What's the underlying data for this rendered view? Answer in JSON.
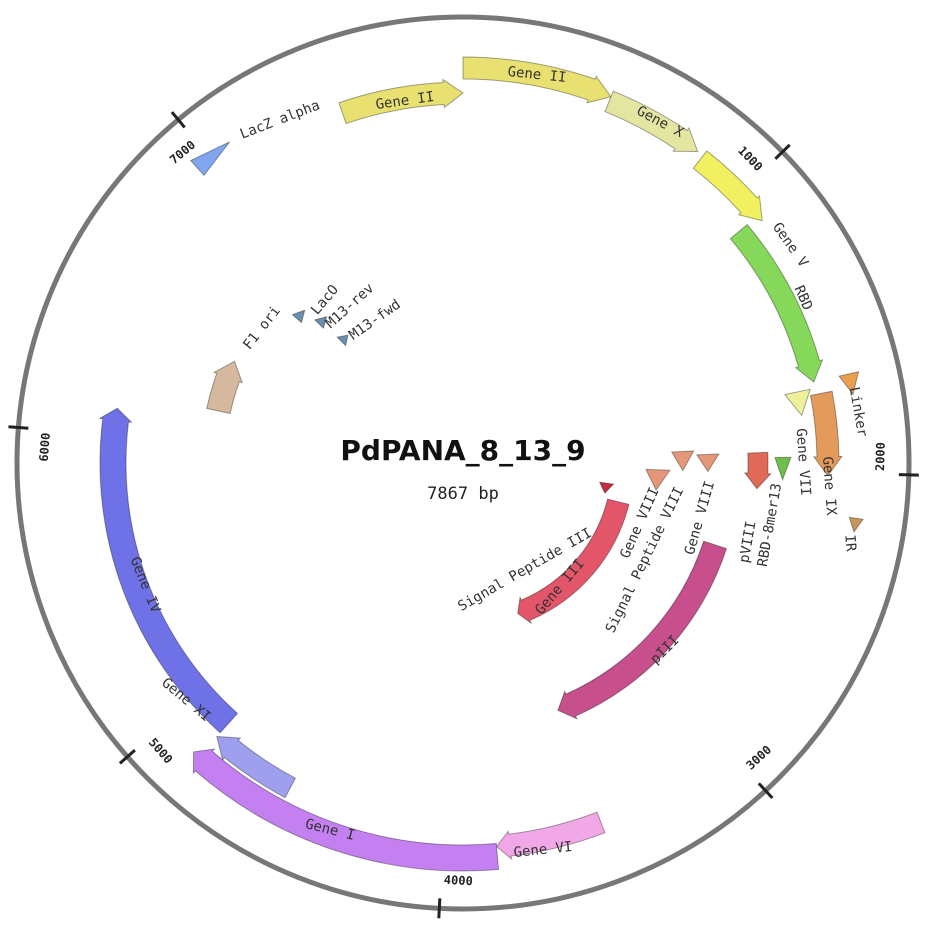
{
  "map": {
    "title": "PdPANA_8_13_9",
    "length": {
      "value": 7867,
      "label": "7867 bp"
    },
    "ticks": [
      1000,
      2000,
      3000,
      4000,
      5000,
      6000,
      7000
    ],
    "features": [
      {
        "label": "LacZ alpha"
      },
      {
        "label": "Gene II"
      },
      {
        "label": "Gene II"
      },
      {
        "label": "Gene X"
      },
      {
        "label": "Gene V"
      },
      {
        "label": "RBD"
      },
      {
        "label": "Linker"
      },
      {
        "label": "Gene VII"
      },
      {
        "label": "Gene IX"
      },
      {
        "label": "IR"
      },
      {
        "label": "RBD-8mer13"
      },
      {
        "label": "pVIII"
      },
      {
        "label": "Gene VIII"
      },
      {
        "label": "Signal Peptide VIII"
      },
      {
        "label": "Gene VIII"
      },
      {
        "label": "Gene III"
      },
      {
        "label": "Signal Peptide III"
      },
      {
        "label": "pIII"
      },
      {
        "label": "Gene IV"
      },
      {
        "label": "Gene XI"
      },
      {
        "label": "Gene I"
      },
      {
        "label": "Gene VI"
      },
      {
        "label": "F1 ori"
      },
      {
        "label": "LacO"
      },
      {
        "label": "M13-rev"
      },
      {
        "label": "M13-fwd"
      }
    ]
  }
}
